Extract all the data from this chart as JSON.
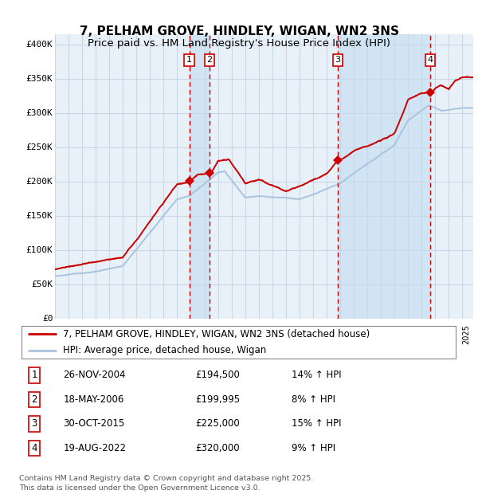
{
  "title": "7, PELHAM GROVE, HINDLEY, WIGAN, WN2 3NS",
  "subtitle": "Price paid vs. HM Land Registry's House Price Index (HPI)",
  "ylabel_ticks": [
    "£0",
    "£50K",
    "£100K",
    "£150K",
    "£200K",
    "£250K",
    "£300K",
    "£350K",
    "£400K"
  ],
  "ytick_values": [
    0,
    50000,
    100000,
    150000,
    200000,
    250000,
    300000,
    350000,
    400000
  ],
  "ylim": [
    0,
    415000
  ],
  "xlim_start": 1995.0,
  "xlim_end": 2025.8,
  "transactions": [
    {
      "num": 1,
      "date": "26-NOV-2004",
      "year": 2004.9,
      "price": 194500,
      "pct": "14%",
      "dir": "↑"
    },
    {
      "num": 2,
      "date": "18-MAY-2006",
      "year": 2006.38,
      "price": 199995,
      "pct": "8%",
      "dir": "↑"
    },
    {
      "num": 3,
      "date": "30-OCT-2015",
      "year": 2015.83,
      "price": 225000,
      "pct": "15%",
      "dir": "↑"
    },
    {
      "num": 4,
      "date": "19-AUG-2022",
      "year": 2022.63,
      "price": 320000,
      "pct": "9%",
      "dir": "↑"
    }
  ],
  "legend_line1": "7, PELHAM GROVE, HINDLEY, WIGAN, WN2 3NS (detached house)",
  "legend_line2": "HPI: Average price, detached house, Wigan",
  "footer": "Contains HM Land Registry data © Crown copyright and database right 2025.\nThis data is licensed under the Open Government Licence v3.0.",
  "red_color": "#cc0000",
  "blue_color": "#a8c4de",
  "bg_chart": "#e8f0f8",
  "bg_highlight": "#d0e4f4",
  "grid_color": "#c8d8e8",
  "title_fontsize": 11,
  "table_data": [
    [
      1,
      "26-NOV-2004",
      "£194,500",
      "14% ↑ HPI"
    ],
    [
      2,
      "18-MAY-2006",
      "£199,995",
      "8% ↑ HPI"
    ],
    [
      3,
      "30-OCT-2015",
      "£225,000",
      "15% ↑ HPI"
    ],
    [
      4,
      "19-AUG-2022",
      "£320,000",
      "9% ↑ HPI"
    ]
  ]
}
